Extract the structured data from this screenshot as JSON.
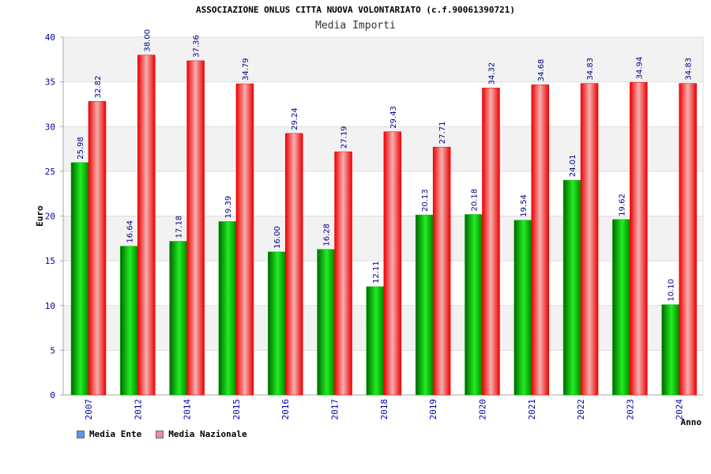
{
  "header": {
    "title": "ASSOCIAZIONE ONLUS CITTA NUOVA VOLONTARIATO (c.f.90061390721)",
    "subtitle": "Media Importi"
  },
  "chart_data": {
    "type": "bar",
    "title": "ASSOCIAZIONE ONLUS CITTA NUOVA VOLONTARIATO (c.f.90061390721)",
    "subtitle": "Media Importi",
    "xlabel": "Anno",
    "ylabel": "Euro",
    "ylim": [
      0,
      40
    ],
    "yticks": [
      0,
      5,
      10,
      15,
      20,
      25,
      30,
      35,
      40
    ],
    "grid": true,
    "legend_position": "bottom-left",
    "categories": [
      "2007",
      "2012",
      "2014",
      "2015",
      "2016",
      "2017",
      "2018",
      "2019",
      "2020",
      "2021",
      "2022",
      "2023",
      "2024"
    ],
    "series": [
      {
        "name": "Media Ente",
        "values": [
          25.98,
          16.64,
          17.18,
          19.39,
          16.0,
          16.28,
          12.11,
          20.13,
          20.18,
          19.54,
          24.01,
          19.62,
          10.1
        ],
        "labels": [
          "25.98",
          "16.64",
          "17.18",
          "19.39",
          "16.00",
          "16.28",
          "12.11",
          "20.13",
          "20.18",
          "19.54",
          "24.01",
          "19.62",
          "10.10"
        ],
        "color": "#00bb00",
        "legend_color": "#5599ee"
      },
      {
        "name": "Media Nazionale",
        "values": [
          32.82,
          38.0,
          37.36,
          34.79,
          29.24,
          27.19,
          29.43,
          27.71,
          34.32,
          34.68,
          34.83,
          34.94,
          34.83
        ],
        "labels": [
          "32.82",
          "38.00",
          "37.36",
          "34.79",
          "29.24",
          "27.19",
          "29.43",
          "27.71",
          "34.32",
          "34.68",
          "34.83",
          "34.94",
          "34.83"
        ],
        "color": "#ee0000",
        "legend_color": "#ee88bb"
      }
    ]
  }
}
